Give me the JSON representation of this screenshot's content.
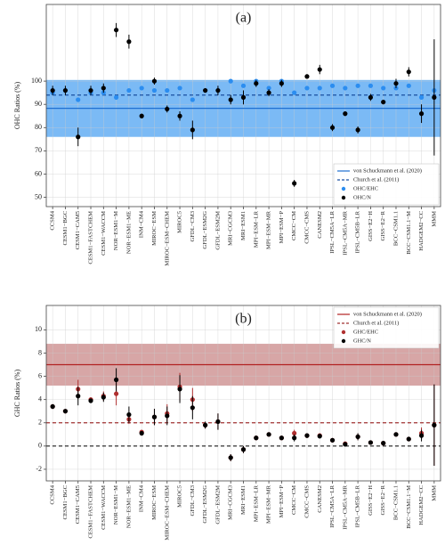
{
  "chart_data": [
    {
      "type": "scatter",
      "title": "(a)",
      "y_label": "OHC Ratios (%)",
      "categories": [
        "CCSM4",
        "CESM1−BGC",
        "CESM1−CAM5",
        "CESM1−FASTCHEM",
        "CESM1−WACCM",
        "NOR−ESM1−M",
        "NOR−ESM1−ME",
        "INM−CM4",
        "MIROC−ESM",
        "MIROC−ESM−CHEM",
        "MIROC5",
        "GFDL−CM3",
        "GFDL−ESM2G",
        "GFDL−ESM2M",
        "MRI−CGCM3",
        "MRI−ESM1",
        "MPI−ESM−LR",
        "MPI−ESM−MR",
        "MPI−ESM−P",
        "CMCC−CM",
        "CMCC−CMS",
        "CANESM2",
        "IPSL−CM5A−LR",
        "IPSL−CM5A−MR",
        "IPSL−CM5B−LR",
        "GISS−E2−H",
        "GISS−E2−R",
        "BCC−CSM1.1",
        "BCC−CSM1.1−M",
        "HADGEM2−CC",
        "MMM"
      ],
      "reference_lines": [
        {
          "name": "von Schuckmann et al. (2020)",
          "color": "#1f6fd0",
          "style": "solid",
          "value": 88.3,
          "band": [
            76,
            100.5
          ],
          "band_color": "#4fa3f2"
        },
        {
          "name": "Church et al. (2011)",
          "color": "#1a4fa0",
          "style": "dashed",
          "value": 94
        }
      ],
      "series": [
        {
          "name": "OHC/EHC",
          "color": "#2b8df0",
          "values": [
            95,
            96,
            92,
            95,
            95,
            93,
            96,
            97,
            96,
            96,
            97,
            92,
            96,
            96,
            100,
            98,
            100,
            97,
            100,
            95,
            97,
            97,
            98,
            97,
            98,
            98,
            97,
            97,
            98,
            93,
            96
          ]
        },
        {
          "name": "OHC/N",
          "color": "#000000",
          "values": [
            96,
            96,
            76,
            96,
            97,
            122,
            117,
            85,
            100,
            88,
            85,
            79,
            96,
            96,
            92,
            93,
            99,
            95,
            99,
            56,
            102,
            105,
            80,
            86,
            79,
            93,
            91,
            99,
            104,
            86,
            93
          ],
          "errors": [
            2,
            2,
            4,
            2,
            2,
            3,
            3,
            1,
            1.5,
            1.5,
            2,
            4,
            1,
            2,
            2,
            3,
            1.5,
            1.5,
            1.5,
            1.5,
            1,
            2,
            1.5,
            1,
            1.5,
            1.5,
            1,
            2,
            2,
            4,
            25
          ]
        }
      ],
      "ylim": [
        46,
        133
      ],
      "yticks": [
        50,
        60,
        70,
        80,
        90,
        100
      ],
      "grid": true,
      "legend": "lower right",
      "zero_line": false
    },
    {
      "type": "scatter",
      "title": "(b)",
      "y_label": "GHC Ratios (%)",
      "categories": [
        "CCSM4",
        "CESM1−BGC",
        "CESM1−CAM5",
        "CESM1−FASTCHEM",
        "CESM1−WACCM",
        "NOR−ESM1−M",
        "NOR−ESM1−ME",
        "INM−CM4",
        "MIROC−ESM",
        "MIROC−ESM−CHEM",
        "MIROC5",
        "GFDL−CM3",
        "GFDL−ESM2G",
        "GFDL−ESM2M",
        "MRI−CGCM3",
        "MRI−ESM1",
        "MPI−ESM−LR",
        "MPI−ESM−MR",
        "MPI−ESM−P",
        "CMCC−CM",
        "CMCC−CMS",
        "CANESM2",
        "IPSL−CM5A−LR",
        "IPSL−CM5A−MR",
        "IPSL−CM5B−LR",
        "GISS−E2−H",
        "GISS−E2−R",
        "BCC−CSM1.1",
        "BCC−CSM1.1−M",
        "HADGEM2−CC",
        "MMM"
      ],
      "reference_lines": [
        {
          "name": "von Schuckmann et al. (2020)",
          "color": "#b22222",
          "style": "solid",
          "value": 7.0,
          "band": [
            5.2,
            8.8
          ],
          "band_color": "#c98888"
        },
        {
          "name": "Church et al. (2011)",
          "color": "#a03030",
          "style": "dashed",
          "value": 2.0
        }
      ],
      "series": [
        {
          "name": "GHC/EHC",
          "color": "#b03030",
          "values": [
            3.4,
            3.0,
            4.9,
            4.0,
            4.3,
            4.5,
            2.3,
            1.2,
            2.5,
            2.8,
            5.1,
            4.0,
            1.8,
            2.1,
            -1.0,
            -0.3,
            0.7,
            1.0,
            0.7,
            1.1,
            0.9,
            0.9,
            0.5,
            0.2,
            0.8,
            0.3,
            0.25,
            1.0,
            0.6,
            1.1,
            1.8
          ],
          "errors": [
            0.2,
            0.15,
            0.8,
            0.2,
            0.4,
            1.0,
            0.4,
            0.2,
            0.7,
            0.8,
            1.2,
            1.0,
            0.3,
            0.7,
            0.3,
            0.3,
            0.15,
            0.15,
            0.15,
            0.3,
            0.2,
            0.2,
            0.15,
            0.15,
            0.3,
            0.1,
            0.1,
            0.1,
            0.15,
            0.5,
            3.5
          ]
        },
        {
          "name": "GHC/N",
          "color": "#000000",
          "values": [
            3.4,
            3.0,
            4.3,
            3.9,
            4.2,
            5.7,
            2.7,
            1.1,
            2.5,
            2.6,
            4.9,
            3.3,
            1.8,
            2.1,
            -1.0,
            -0.3,
            0.7,
            1.0,
            0.7,
            0.7,
            0.9,
            0.85,
            0.5,
            0.15,
            0.8,
            0.3,
            0.25,
            1.0,
            0.6,
            0.9,
            1.8
          ],
          "errors": [
            0.2,
            0.15,
            0.8,
            0.2,
            0.4,
            1.0,
            0.7,
            0.2,
            0.7,
            0.8,
            1.2,
            1.0,
            0.3,
            0.7,
            0.3,
            0.3,
            0.15,
            0.15,
            0.15,
            0.3,
            0.2,
            0.2,
            0.15,
            0.15,
            0.3,
            0.1,
            0.1,
            0.1,
            0.15,
            0.5,
            3.5
          ]
        }
      ],
      "ylim": [
        -3,
        12.1
      ],
      "yticks": [
        -2,
        0,
        2,
        4,
        6,
        8,
        10
      ],
      "grid": true,
      "legend": "upper right",
      "zero_line": true
    }
  ]
}
